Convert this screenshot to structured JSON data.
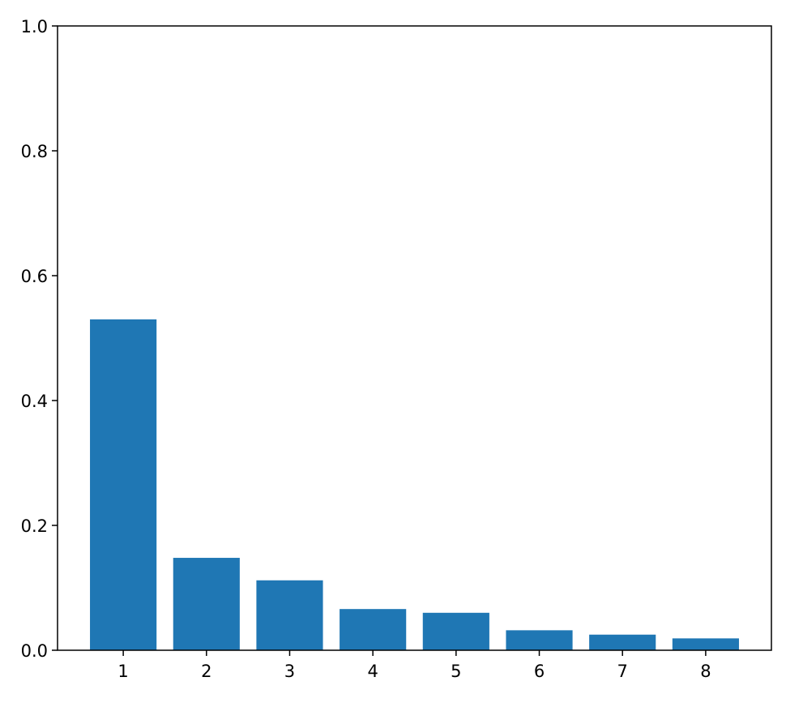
{
  "chart_data": {
    "type": "bar",
    "x": [
      1,
      2,
      3,
      4,
      5,
      6,
      7,
      8
    ],
    "values": [
      0.53,
      0.148,
      0.112,
      0.066,
      0.06,
      0.032,
      0.025,
      0.019
    ],
    "color": "#1f77b4",
    "xlim": [
      0.21,
      8.79
    ],
    "xticks": [
      1,
      2,
      3,
      4,
      5,
      6,
      7,
      8
    ],
    "ylim": [
      0,
      1
    ],
    "yticks": [
      {
        "value": 0,
        "label": "0.0"
      },
      0.2,
      0.4,
      0.6,
      0.8,
      {
        "value": 1,
        "label": "1.0"
      }
    ],
    "grid": false
  }
}
